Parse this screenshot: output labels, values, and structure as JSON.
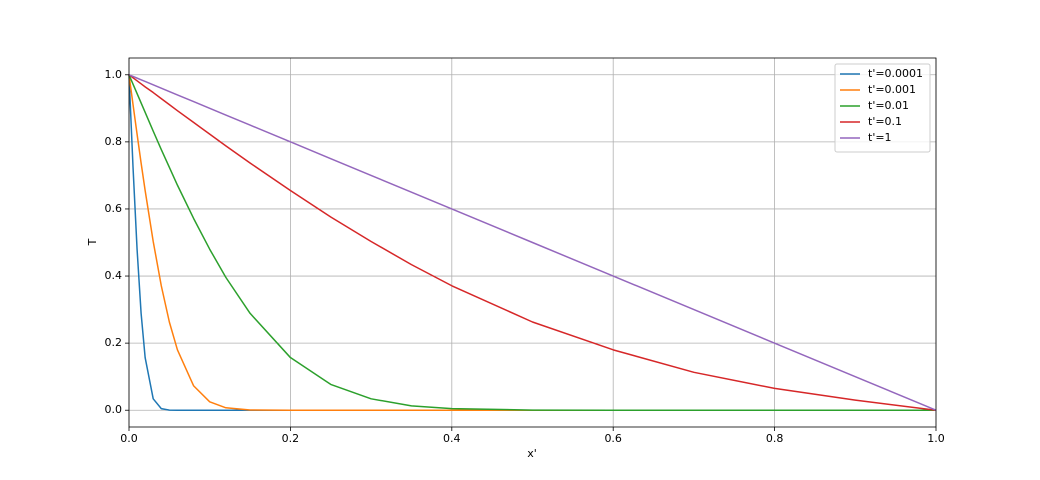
{
  "chart_data": {
    "type": "line",
    "xlabel": "x'",
    "ylabel": "T",
    "x": [
      0,
      0.005,
      0.01,
      0.015,
      0.02,
      0.03,
      0.04,
      0.05,
      0.06,
      0.08,
      0.1,
      0.12,
      0.15,
      0.2,
      0.25,
      0.3,
      0.35,
      0.4,
      0.5,
      0.6,
      0.7,
      0.8,
      0.9,
      1.0
    ],
    "series": [
      {
        "name": "t'=0.0001",
        "color": "#1f77b4",
        "values": [
          1,
          0.724,
          0.48,
          0.289,
          0.157,
          0.034,
          0.0047,
          0.0004,
          0,
          0,
          0,
          0,
          0,
          0,
          0,
          0,
          0,
          0,
          0,
          0,
          0,
          0,
          0,
          0
        ]
      },
      {
        "name": "t'=0.001",
        "color": "#ff7f0e",
        "values": [
          1,
          0.911,
          0.823,
          0.737,
          0.655,
          0.503,
          0.371,
          0.263,
          0.18,
          0.073,
          0.025,
          0.0073,
          0.0008,
          0,
          0,
          0,
          0,
          0,
          0,
          0,
          0,
          0,
          0,
          0
        ]
      },
      {
        "name": "t'=0.01",
        "color": "#2ca02c",
        "values": [
          1,
          0.972,
          0.944,
          0.916,
          0.888,
          0.832,
          0.777,
          0.724,
          0.671,
          0.572,
          0.48,
          0.396,
          0.289,
          0.157,
          0.077,
          0.034,
          0.013,
          0.0047,
          0.0004,
          0,
          0,
          0,
          0,
          0
        ]
      },
      {
        "name": "t'=0.1",
        "color": "#d62728",
        "values": [
          1,
          0.991,
          0.982,
          0.973,
          0.964,
          0.947,
          0.929,
          0.911,
          0.893,
          0.858,
          0.823,
          0.788,
          0.737,
          0.655,
          0.576,
          0.503,
          0.434,
          0.371,
          0.263,
          0.18,
          0.113,
          0.065,
          0.03,
          0
        ]
      },
      {
        "name": "t'=1",
        "color": "#9467bd",
        "values": [
          1,
          0.995,
          0.99,
          0.985,
          0.98,
          0.97,
          0.96,
          0.95,
          0.94,
          0.92,
          0.9,
          0.88,
          0.85,
          0.8,
          0.75,
          0.7,
          0.65,
          0.6,
          0.5,
          0.4,
          0.3,
          0.2,
          0.1,
          0
        ]
      }
    ],
    "xlim": [
      0,
      1
    ],
    "ylim": [
      -0.05,
      1.05
    ],
    "xticks": [
      {
        "value": 0,
        "label": "0.0"
      },
      0.2,
      0.4,
      0.6,
      0.8,
      {
        "value": 1,
        "label": "1.0"
      }
    ],
    "yticks": [
      {
        "value": 0,
        "label": "0.0"
      },
      0.2,
      0.4,
      0.6,
      0.8,
      {
        "value": 1,
        "label": "1.0"
      }
    ],
    "grid": true,
    "legend": "upper right"
  }
}
